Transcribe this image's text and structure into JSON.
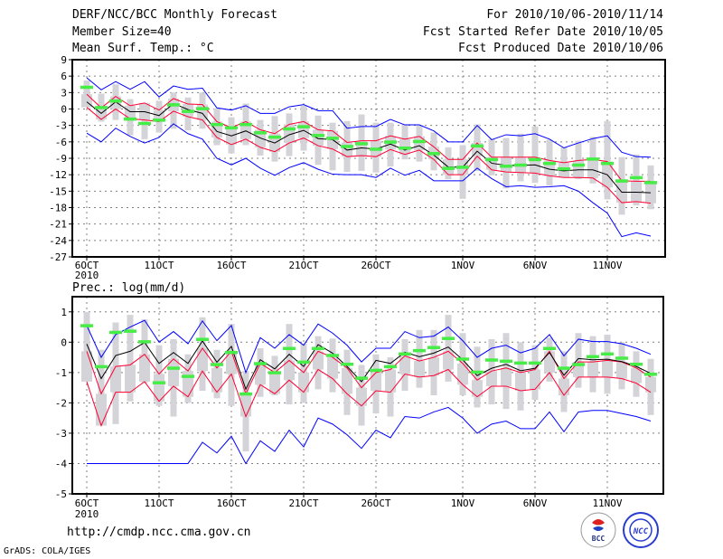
{
  "header": {
    "title": "DERF/NCC/BCC Monthly Forecast",
    "member_size": "Member Size=40",
    "variable1": "Mean Surf. Temp.: °C",
    "period": "For 2010/10/06-2010/11/14",
    "start_date": "Fcst Started Refer Date 2010/10/05",
    "produced_date": "Fcst Produced Date 2010/10/06"
  },
  "footer": {
    "url": "http://cmdp.ncc.cma.gov.cn",
    "credit": "GrADS: COLA/IGES",
    "logo_bcc": "BCC",
    "logo_ncc": "NCC"
  },
  "colors": {
    "max_min": "#0000ff",
    "spread": "#ff0033",
    "mean": "#000000",
    "observed": "#44ee44",
    "box": "#d4d4d8",
    "grid": "#808080"
  },
  "chart_data": [
    {
      "type": "line",
      "title": "Mean Surf. Temp.: °C",
      "x_ticks": [
        {
          "day": 0,
          "label": "6OCT",
          "sub": "2010"
        },
        {
          "day": 5,
          "label": "11OCT"
        },
        {
          "day": 10,
          "label": "16OCT"
        },
        {
          "day": 15,
          "label": "21OCT"
        },
        {
          "day": 20,
          "label": "26OCT"
        },
        {
          "day": 26,
          "label": "1NOV"
        },
        {
          "day": 31,
          "label": "6NOV"
        },
        {
          "day": 36,
          "label": "11NOV"
        }
      ],
      "y_ticks": [
        9,
        6,
        3,
        0,
        -3,
        -6,
        -9,
        -12,
        -15,
        -18,
        -21,
        -24,
        -27
      ],
      "ylim": [
        -27,
        9
      ],
      "series": [
        {
          "name": "max",
          "color": "#0000ff",
          "values": [
            5.7,
            3.5,
            5,
            3.6,
            5,
            2.2,
            4.2,
            3.6,
            3.8,
            0.2,
            -0.2,
            0.6,
            -0.8,
            -0.8,
            0.4,
            0.8,
            -0.3,
            -0.3,
            -3.5,
            -3.2,
            -3.2,
            -1.9,
            -2.9,
            -2.9,
            -4,
            -6,
            -6,
            -3,
            -5.6,
            -4.7,
            -4.9,
            -4.5,
            -5.5,
            -7.1,
            -6.2,
            -5.4,
            -4.9,
            -7.9,
            -8.7,
            -8.8
          ]
        },
        {
          "name": "upper",
          "color": "#ff0033",
          "values": [
            2.7,
            0.2,
            2.3,
            0.6,
            1.1,
            -0.2,
            1.9,
            0.9,
            0.8,
            -2.3,
            -3.4,
            -2.3,
            -3.8,
            -4.5,
            -2.8,
            -2.3,
            -3.8,
            -4,
            -6.1,
            -5.8,
            -5.8,
            -4.9,
            -5.5,
            -5,
            -6.9,
            -9.2,
            -9.2,
            -6.2,
            -8.8,
            -8.8,
            -8.8,
            -8.8,
            -9.4,
            -9.8,
            -9.4,
            -9.2,
            -9.6,
            -13.1,
            -13.2,
            -13.2
          ]
        },
        {
          "name": "mean",
          "color": "#000000",
          "values": [
            1.3,
            -0.8,
            1.3,
            -0.5,
            -0.5,
            -1.2,
            1,
            -0.1,
            -0.8,
            -4.1,
            -4.9,
            -4,
            -5.3,
            -6.2,
            -4.7,
            -3.9,
            -5.4,
            -5.6,
            -7.5,
            -7.1,
            -7.3,
            -6.4,
            -7.5,
            -6.7,
            -8.4,
            -10.6,
            -10.6,
            -7.7,
            -9.9,
            -10.3,
            -10.3,
            -10.2,
            -11,
            -11.3,
            -11.1,
            -11.1,
            -12,
            -15.2,
            -15.2,
            -15.3
          ]
        },
        {
          "name": "lower",
          "color": "#ff0033",
          "values": [
            0.3,
            -1.9,
            0,
            -1.8,
            -2,
            -2.3,
            -0.4,
            -1.4,
            -2,
            -5.2,
            -6.5,
            -5.5,
            -7,
            -7.8,
            -6.2,
            -5.3,
            -6.7,
            -7.3,
            -8.7,
            -8.5,
            -8.7,
            -7.4,
            -8.3,
            -7.5,
            -9.2,
            -12,
            -12,
            -8.6,
            -11.1,
            -11.5,
            -11.6,
            -11.7,
            -12.2,
            -12.5,
            -12.5,
            -12.6,
            -14.3,
            -17.1,
            -16.9,
            -17.2
          ]
        },
        {
          "name": "min",
          "color": "#0000ff",
          "values": [
            -4.4,
            -6,
            -3.5,
            -5,
            -6.2,
            -5.2,
            -2.7,
            -4.5,
            -5.5,
            -9,
            -10.2,
            -9,
            -10.8,
            -12.1,
            -10.7,
            -9.8,
            -11,
            -11.9,
            -12,
            -12,
            -12.5,
            -10.8,
            -12.1,
            -11.2,
            -13.1,
            -13.1,
            -13.1,
            -10.8,
            -12.7,
            -14.2,
            -14,
            -14.3,
            -14.2,
            -14,
            -15,
            -17.1,
            -19,
            -23.3,
            -22.6,
            -23.2
          ]
        }
      ],
      "observed": [
        4,
        0.3,
        1.5,
        -1.8,
        -2.6,
        -2,
        0.8,
        -0.4,
        0.1,
        -2.8,
        -3.4,
        -2.8,
        -4.3,
        -5.1,
        -3.6,
        -3.2,
        -4.8,
        -5.3,
        -6.8,
        -6.3,
        -7.3,
        -6,
        -7.1,
        -5.9,
        -8.1,
        -10.8,
        -10.6,
        -6.7,
        -9.2,
        -10.4,
        -10.2,
        -9.2,
        -9.9,
        -10.9,
        -10.2,
        -9.1,
        -9.9,
        -13.1,
        -12.5,
        -13.4
      ],
      "whisker_high": [
        5.2,
        2.8,
        4.5,
        1.8,
        0.3,
        1.5,
        3,
        2.1,
        3,
        0.1,
        -1.5,
        1,
        -2,
        -1.3,
        -0.8,
        0.6,
        -1.2,
        -2.5,
        -2.2,
        -1,
        -2.5,
        -2.5,
        -2.8,
        -3,
        -4.3,
        -7,
        -6.6,
        -2.8,
        -5.5,
        -5.3,
        -4.5,
        -3.2,
        -5.6,
        -7,
        -5.8,
        -5.1,
        -2.2,
        -8.8,
        -8.3,
        -10.3
      ],
      "whisker_low": [
        0.6,
        -2.3,
        -2,
        -4.8,
        -5.5,
        -4.3,
        -3.6,
        -3.9,
        -3.6,
        -6.6,
        -8.1,
        -6.6,
        -8.5,
        -9.6,
        -8.6,
        -7.6,
        -10.2,
        -11.2,
        -11.5,
        -11.3,
        -11.6,
        -10.5,
        -9.2,
        -9.6,
        -11.2,
        -12.8,
        -16.4,
        -11.3,
        -12.1,
        -14.5,
        -13.2,
        -13.5,
        -14,
        -12.3,
        -12.8,
        -13.6,
        -16.5,
        -19.3,
        -17.6,
        -18.3
      ]
    },
    {
      "type": "line",
      "title": "Prec.: log(mm/d)",
      "x_ticks": [
        {
          "day": 0,
          "label": "6OCT",
          "sub": "2010"
        },
        {
          "day": 5,
          "label": "11OCT"
        },
        {
          "day": 10,
          "label": "16OCT"
        },
        {
          "day": 15,
          "label": "21OCT"
        },
        {
          "day": 20,
          "label": "26OCT"
        },
        {
          "day": 26,
          "label": "1NOV"
        },
        {
          "day": 31,
          "label": "6NOV"
        },
        {
          "day": 36,
          "label": "11NOV"
        }
      ],
      "y_ticks": [
        1,
        0,
        -1,
        -2,
        -3,
        -4,
        -5
      ],
      "ylim": [
        -5,
        1.5
      ],
      "series": [
        {
          "name": "max",
          "color": "#0000ff",
          "values": [
            0.55,
            -0.5,
            0.25,
            0.5,
            0.72,
            0,
            0.35,
            -0.05,
            0.7,
            0.05,
            0.55,
            -1,
            0.15,
            -0.2,
            0.25,
            -0.1,
            0.6,
            0.3,
            -0.1,
            -0.65,
            -0.2,
            -0.2,
            0.35,
            0.15,
            0.2,
            0.5,
            0.05,
            -0.5,
            -0.2,
            -0.1,
            -0.35,
            -0.2,
            0.25,
            -0.45,
            0.1,
            0.02,
            0.02,
            -0.05,
            -0.2,
            -0.4
          ]
        },
        {
          "name": "upper",
          "color": "#ff0033",
          "values": [
            -0.3,
            -1.7,
            -0.8,
            -0.75,
            -0.4,
            -1.05,
            -0.55,
            -0.95,
            -0.2,
            -0.85,
            -0.3,
            -1.7,
            -0.7,
            -1,
            -0.6,
            -1,
            -0.3,
            -0.5,
            -0.85,
            -1.5,
            -1,
            -0.9,
            -0.45,
            -0.62,
            -0.5,
            -0.3,
            -0.7,
            -1.25,
            -0.95,
            -0.85,
            -1,
            -0.9,
            -0.3,
            -1.2,
            -0.65,
            -0.65,
            -0.6,
            -0.65,
            -0.85,
            -1.15
          ]
        },
        {
          "name": "mean",
          "color": "#000000",
          "values": [
            -0.06,
            -1.2,
            -0.44,
            -0.3,
            -0.01,
            -0.7,
            -0.34,
            -0.7,
            0.04,
            -0.66,
            -0.14,
            -1.55,
            -0.58,
            -0.88,
            -0.4,
            -0.8,
            -0.08,
            -0.36,
            -0.8,
            -1.3,
            -0.6,
            -0.7,
            -0.33,
            -0.48,
            -0.36,
            -0.16,
            -0.58,
            -1.1,
            -0.86,
            -0.73,
            -0.94,
            -0.86,
            -0.34,
            -1.09,
            -0.54,
            -0.58,
            -0.56,
            -0.64,
            -0.8,
            -1.03
          ]
        },
        {
          "name": "lower",
          "color": "#ff0033",
          "values": [
            -1.3,
            -2.75,
            -1.65,
            -1.65,
            -1.3,
            -1.95,
            -1.45,
            -1.8,
            -0.95,
            -1.65,
            -1.05,
            -2.45,
            -1.4,
            -1.7,
            -1.25,
            -1.65,
            -0.9,
            -1.2,
            -1.7,
            -2.1,
            -1.6,
            -1.65,
            -1.05,
            -1.15,
            -1.1,
            -0.9,
            -1.4,
            -1.8,
            -1.45,
            -1.45,
            -1.6,
            -1.55,
            -1,
            -1.75,
            -1.15,
            -1.15,
            -1.15,
            -1.2,
            -1.35,
            -1.65
          ]
        },
        {
          "name": "min",
          "color": "#0000ff",
          "values": [
            -4,
            -4,
            -4,
            -4,
            -4,
            -4,
            -4,
            -4,
            -3.3,
            -3.65,
            -3.1,
            -4,
            -3.25,
            -3.6,
            -2.9,
            -3.45,
            -2.5,
            -2.7,
            -3.05,
            -3.5,
            -2.9,
            -3.15,
            -2.45,
            -2.5,
            -2.3,
            -2.15,
            -2.5,
            -3,
            -2.7,
            -2.6,
            -2.85,
            -2.85,
            -2.3,
            -2.95,
            -2.3,
            -2.25,
            -2.25,
            -2.35,
            -2.45,
            -2.6
          ]
        }
      ],
      "observed": [
        0.55,
        -0.8,
        0.33,
        0.37,
        0.02,
        -1.33,
        -0.85,
        -1.12,
        0.1,
        -0.73,
        -0.33,
        -1.7,
        -0.7,
        -1,
        -0.2,
        -0.65,
        -0.2,
        -0.43,
        -0.72,
        -1.18,
        -0.92,
        -0.8,
        -0.38,
        -0.27,
        -0.17,
        0.13,
        -0.55,
        -0.98,
        -0.58,
        -0.62,
        -0.68,
        -0.68,
        -0.2,
        -0.85,
        -0.73,
        -0.47,
        -0.38,
        -0.52,
        -0.72,
        -1.05
      ],
      "whisker_high": [
        1,
        -0.25,
        0.65,
        0.9,
        0.75,
        -0.1,
        0.1,
        -0.4,
        0.82,
        -0.25,
        0.6,
        -0.95,
        -0.2,
        -0.45,
        0.6,
        -0.05,
        0.2,
        0.12,
        -0.25,
        -0.75,
        -0.4,
        -0.5,
        0.1,
        0.4,
        0.4,
        0.9,
        0.3,
        -0.15,
        0.1,
        0.3,
        0,
        -0.1,
        0.15,
        -0.3,
        0.3,
        0.2,
        0.25,
        0,
        -0.3,
        -0.55
      ],
      "whisker_low": [
        -0.55,
        -2.45,
        -2.7,
        -1.95,
        -1.35,
        -2.1,
        -2.45,
        -2,
        -1.6,
        -1.85,
        -2.1,
        -3.6,
        -1.8,
        -1.75,
        -2.05,
        -2,
        -1.55,
        -1.65,
        -2.4,
        -2.75,
        -2.35,
        -2.45,
        -1.6,
        -1.5,
        -1.75,
        -1.3,
        -1.75,
        -2.15,
        -2.05,
        -2.2,
        -2.25,
        -1.9,
        -1.3,
        -2.3,
        -1.5,
        -1.65,
        -1.7,
        -1.55,
        -1.8,
        -2.4
      ]
    }
  ]
}
